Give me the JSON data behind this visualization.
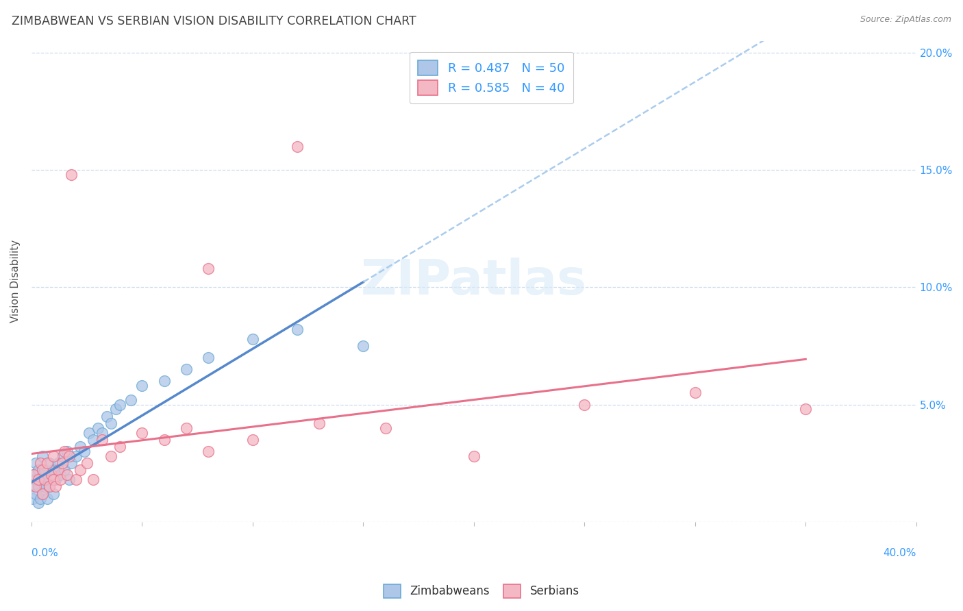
{
  "title": "ZIMBABWEAN VS SERBIAN VISION DISABILITY CORRELATION CHART",
  "source": "Source: ZipAtlas.com",
  "ylabel": "Vision Disability",
  "legend_entries": [
    {
      "label": "R = 0.487   N = 50",
      "color": "#aec6e8",
      "edgecolor": "#6aaad4"
    },
    {
      "label": "R = 0.585   N = 40",
      "color": "#f4b8c4",
      "edgecolor": "#e8708a"
    }
  ],
  "bottom_legend": [
    "Zimbabweans",
    "Serbians"
  ],
  "zimbabweans_color": "#aec6e8",
  "zimbabweans_edge": "#6aaad4",
  "serbians_color": "#f4b8c4",
  "serbians_edge": "#e8708a",
  "trend_zim_color": "#5588cc",
  "trend_ser_color": "#e8708a",
  "xmin": 0.0,
  "xmax": 0.4,
  "ymin": 0.0,
  "ymax": 0.205,
  "yticks": [
    0.0,
    0.05,
    0.1,
    0.15,
    0.2
  ],
  "ytick_labels_right": [
    "",
    "5.0%",
    "10.0%",
    "15.0%",
    "20.0%"
  ],
  "xticks": [
    0.0,
    0.05,
    0.1,
    0.15,
    0.2,
    0.25,
    0.3,
    0.35,
    0.4
  ],
  "zimbabweans_x": [
    0.0005,
    0.001,
    0.001,
    0.002,
    0.002,
    0.002,
    0.003,
    0.003,
    0.003,
    0.004,
    0.004,
    0.005,
    0.005,
    0.005,
    0.006,
    0.006,
    0.007,
    0.007,
    0.008,
    0.008,
    0.009,
    0.01,
    0.01,
    0.011,
    0.012,
    0.013,
    0.014,
    0.015,
    0.016,
    0.017,
    0.018,
    0.02,
    0.022,
    0.024,
    0.026,
    0.028,
    0.03,
    0.032,
    0.034,
    0.036,
    0.038,
    0.04,
    0.045,
    0.05,
    0.06,
    0.07,
    0.08,
    0.1,
    0.12,
    0.15
  ],
  "zimbabweans_y": [
    0.01,
    0.015,
    0.02,
    0.012,
    0.018,
    0.025,
    0.008,
    0.015,
    0.022,
    0.01,
    0.018,
    0.012,
    0.02,
    0.028,
    0.015,
    0.022,
    0.01,
    0.018,
    0.015,
    0.025,
    0.02,
    0.012,
    0.022,
    0.018,
    0.025,
    0.02,
    0.028,
    0.022,
    0.03,
    0.018,
    0.025,
    0.028,
    0.032,
    0.03,
    0.038,
    0.035,
    0.04,
    0.038,
    0.045,
    0.042,
    0.048,
    0.05,
    0.052,
    0.058,
    0.06,
    0.065,
    0.07,
    0.078,
    0.082,
    0.075
  ],
  "serbians_x": [
    0.001,
    0.002,
    0.003,
    0.004,
    0.005,
    0.005,
    0.006,
    0.007,
    0.008,
    0.009,
    0.01,
    0.01,
    0.011,
    0.012,
    0.013,
    0.014,
    0.015,
    0.016,
    0.017,
    0.018,
    0.02,
    0.022,
    0.025,
    0.028,
    0.032,
    0.036,
    0.04,
    0.05,
    0.06,
    0.07,
    0.08,
    0.1,
    0.13,
    0.16,
    0.2,
    0.25,
    0.3,
    0.35,
    0.08,
    0.12
  ],
  "serbians_y": [
    0.02,
    0.015,
    0.018,
    0.025,
    0.012,
    0.022,
    0.018,
    0.025,
    0.015,
    0.02,
    0.018,
    0.028,
    0.015,
    0.022,
    0.018,
    0.025,
    0.03,
    0.02,
    0.028,
    0.148,
    0.018,
    0.022,
    0.025,
    0.018,
    0.035,
    0.028,
    0.032,
    0.038,
    0.035,
    0.04,
    0.03,
    0.035,
    0.042,
    0.04,
    0.028,
    0.05,
    0.055,
    0.048,
    0.108,
    0.16
  ]
}
